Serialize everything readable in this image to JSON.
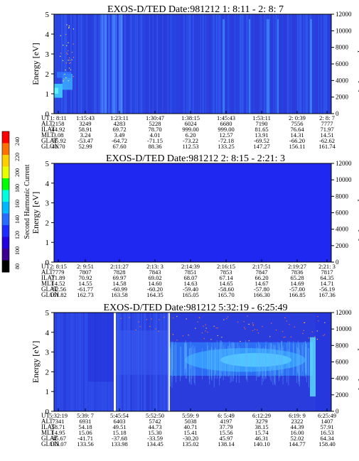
{
  "colorbar": {
    "label": "Second Harmonic Current",
    "ticks": [
      "240",
      "220",
      "200",
      "180",
      "160",
      "140",
      "120",
      "100",
      "80"
    ],
    "colors": [
      "#ff0000",
      "#ff7000",
      "#ffd000",
      "#e8ff00",
      "#00ff00",
      "#00ffe0",
      "#00b8ff",
      "#2a6bff",
      "#1e2bff",
      "#2300e0",
      "#3a0090",
      "#000000"
    ]
  },
  "chart_data": [
    {
      "type": "heatmap",
      "title": "EXOS-D/TED   Date:981212  1: 8:11 - 2: 8: 7",
      "ylabel": "Energy [eV]",
      "y2label": "Temperature [K]",
      "ylim": [
        0,
        5
      ],
      "y2lim": [
        0,
        12000
      ],
      "yticks": [
        "0",
        "1",
        "2",
        "3",
        "4",
        "5"
      ],
      "y2ticks": [
        "0",
        "2000",
        "4000",
        "6000",
        "8000",
        "10000",
        "12000"
      ],
      "row_labels": [
        "UT",
        "ALT",
        "ILAT",
        "MLT",
        "GLAT",
        "GLON"
      ],
      "columns": [
        [
          "1: 8:11",
          "2158",
          "44.92",
          "3.08",
          "-35.92",
          "41.70"
        ],
        [
          "1:15:43",
          "3249",
          "58.91",
          "3.24",
          "-53.47",
          "52.99"
        ],
        [
          "1:23:11",
          "4283",
          "69.72",
          "3.49",
          "-64.72",
          "67.60"
        ],
        [
          "1:30:47",
          "5228",
          "78.70",
          "4.01",
          "-71.15",
          "88.36"
        ],
        [
          "1:38:15",
          "6024",
          "999.00",
          "6.20",
          "-73.22",
          "112.53"
        ],
        [
          "1:45:43",
          "6680",
          "999.00",
          "12.57",
          "-72.18",
          "133.25"
        ],
        [
          "1:53:11",
          "7190",
          "81.65",
          "13.91",
          "-69.52",
          "147.27"
        ],
        [
          "2: 0:39",
          "7556",
          "76.64",
          "14.31",
          "-66.20",
          "156.11"
        ],
        [
          "2: 8: 7",
          "7777",
          "71.97",
          "14.51",
          "-62.62",
          "161.74"
        ]
      ]
    },
    {
      "type": "heatmap",
      "title": "EXOS-D/TED   Date:981212  2: 8:15 - 2:21: 3",
      "ylabel": "Energy [eV]",
      "y2label": "Temperature [K]",
      "ylim": [
        0,
        5
      ],
      "y2lim": [
        0,
        12000
      ],
      "yticks": [
        "0",
        "1",
        "2",
        "3",
        "4",
        "5"
      ],
      "y2ticks": [
        "0",
        "2000",
        "4000",
        "6000",
        "8000",
        "10000",
        "12000"
      ],
      "row_labels": [
        "UT",
        "ALT",
        "ILAT",
        "MLT",
        "GLAT",
        "GLON"
      ],
      "columns": [
        [
          "2: 8:15",
          "7779",
          "71.89",
          "14.52",
          "-62.56",
          "161.82"
        ],
        [
          "2: 9:51",
          "7807",
          "70.92",
          "14.55",
          "-61.77",
          "162.73"
        ],
        [
          "2:11:27",
          "7828",
          "69.97",
          "14.58",
          "-60.99",
          "163.58"
        ],
        [
          "2:13: 3",
          "7843",
          "69.02",
          "14.60",
          "-60.20",
          "164.35"
        ],
        [
          "2:14:39",
          "7851",
          "68.07",
          "14.63",
          "-59.40",
          "165.05"
        ],
        [
          "2:16:15",
          "7853",
          "67.14",
          "14.65",
          "-58.60",
          "165.70"
        ],
        [
          "2:17:51",
          "7847",
          "66.20",
          "14.67",
          "-57.80",
          "166.30"
        ],
        [
          "2:19:27",
          "7836",
          "65.28",
          "14.69",
          "-57.00",
          "166.85"
        ],
        [
          "2:21: 3",
          "7817",
          "64.35",
          "14.71",
          "-56.19",
          "167.36"
        ]
      ]
    },
    {
      "type": "heatmap",
      "title": "EXOS-D/TED   Date:981212  5:32:19 - 6:25:49",
      "ylabel": "Energy [eV]",
      "y2label": "Temperature [K]",
      "ylim": [
        0,
        5
      ],
      "y2lim": [
        0,
        12000
      ],
      "yticks": [
        "0",
        "1",
        "2",
        "3",
        "4",
        "5"
      ],
      "y2ticks": [
        "0",
        "2000",
        "4000",
        "6000",
        "8000",
        "10000",
        "12000"
      ],
      "row_labels": [
        "UT",
        "ALT",
        "ILAT",
        "MLT",
        "GLAT",
        "GLON"
      ],
      "columns": [
        [
          "5:32:19",
          "7341",
          "58.71",
          "14.95",
          "-45.67",
          "133.07"
        ],
        [
          "5:39: 7",
          "6931",
          "54.18",
          "15.06",
          "-41.71",
          "133.56"
        ],
        [
          "5:45:54",
          "6403",
          "49.51",
          "15.18",
          "-37.68",
          "133.98"
        ],
        [
          "5:52:50",
          "5742",
          "44.73",
          "15.30",
          "-33.59",
          "134.45"
        ],
        [
          "5:59: 9",
          "5038",
          "40.71",
          "15.41",
          "-30.20",
          "135.02"
        ],
        [
          "6: 5:49",
          "4197",
          "37.79",
          "15.56",
          "45.97",
          "138.14"
        ],
        [
          "6:12:29",
          "3279",
          "38.15",
          "15.74",
          "46.31",
          "140.10"
        ],
        [
          "6:19: 9",
          "2322",
          "44.39",
          "16.00",
          "52.02",
          "144.77"
        ],
        [
          "6:25:49",
          "1407",
          "57.91",
          "16.53",
          "64.34",
          "158.40"
        ]
      ]
    }
  ]
}
